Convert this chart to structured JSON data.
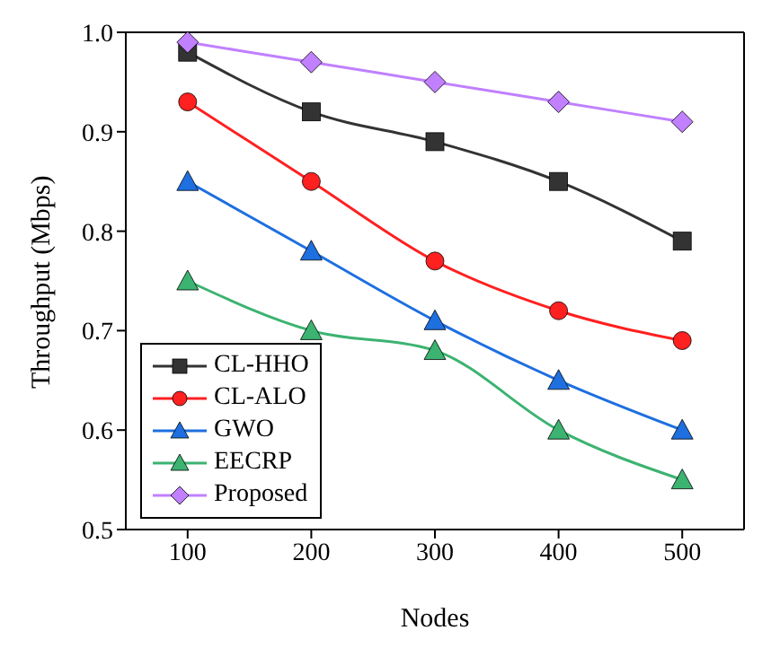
{
  "chart_data": {
    "type": "line",
    "xlabel": "Nodes",
    "ylabel": "Throughput (Mbps)",
    "x": [
      100,
      200,
      300,
      400,
      500
    ],
    "xlim": [
      50,
      550
    ],
    "xticks": [
      100,
      200,
      300,
      400,
      500
    ],
    "ylim": [
      0.5,
      1.0
    ],
    "yticks": [
      {
        "value": 0.5,
        "label": "0.5"
      },
      {
        "value": 0.6,
        "label": "0.6"
      },
      {
        "value": 0.7,
        "label": "0.7"
      },
      {
        "value": 0.8,
        "label": "0.8"
      },
      {
        "value": 0.9,
        "label": "0.9"
      },
      {
        "value": 1.0,
        "label": "1.0"
      }
    ],
    "grid": false,
    "legend": "bottom left",
    "line_style": "solid",
    "series": [
      {
        "name": "CL-HHO",
        "color": "#333333",
        "marker": "square",
        "values": [
          0.98,
          0.92,
          0.89,
          0.85,
          0.79
        ]
      },
      {
        "name": "CL-ALO",
        "color": "#ff2020",
        "marker": "circle",
        "values": [
          0.93,
          0.85,
          0.77,
          0.72,
          0.69
        ]
      },
      {
        "name": "GWO",
        "color": "#1e6fe0",
        "marker": "triangle",
        "values": [
          0.85,
          0.78,
          0.71,
          0.65,
          0.6
        ]
      },
      {
        "name": "EECRP",
        "color": "#3cb371",
        "marker": "triangle",
        "values": [
          0.75,
          0.7,
          0.68,
          0.6,
          0.55
        ]
      },
      {
        "name": "Proposed",
        "color": "#c080ff",
        "marker": "diamond",
        "values": [
          0.99,
          0.97,
          0.95,
          0.93,
          0.91
        ]
      }
    ]
  }
}
